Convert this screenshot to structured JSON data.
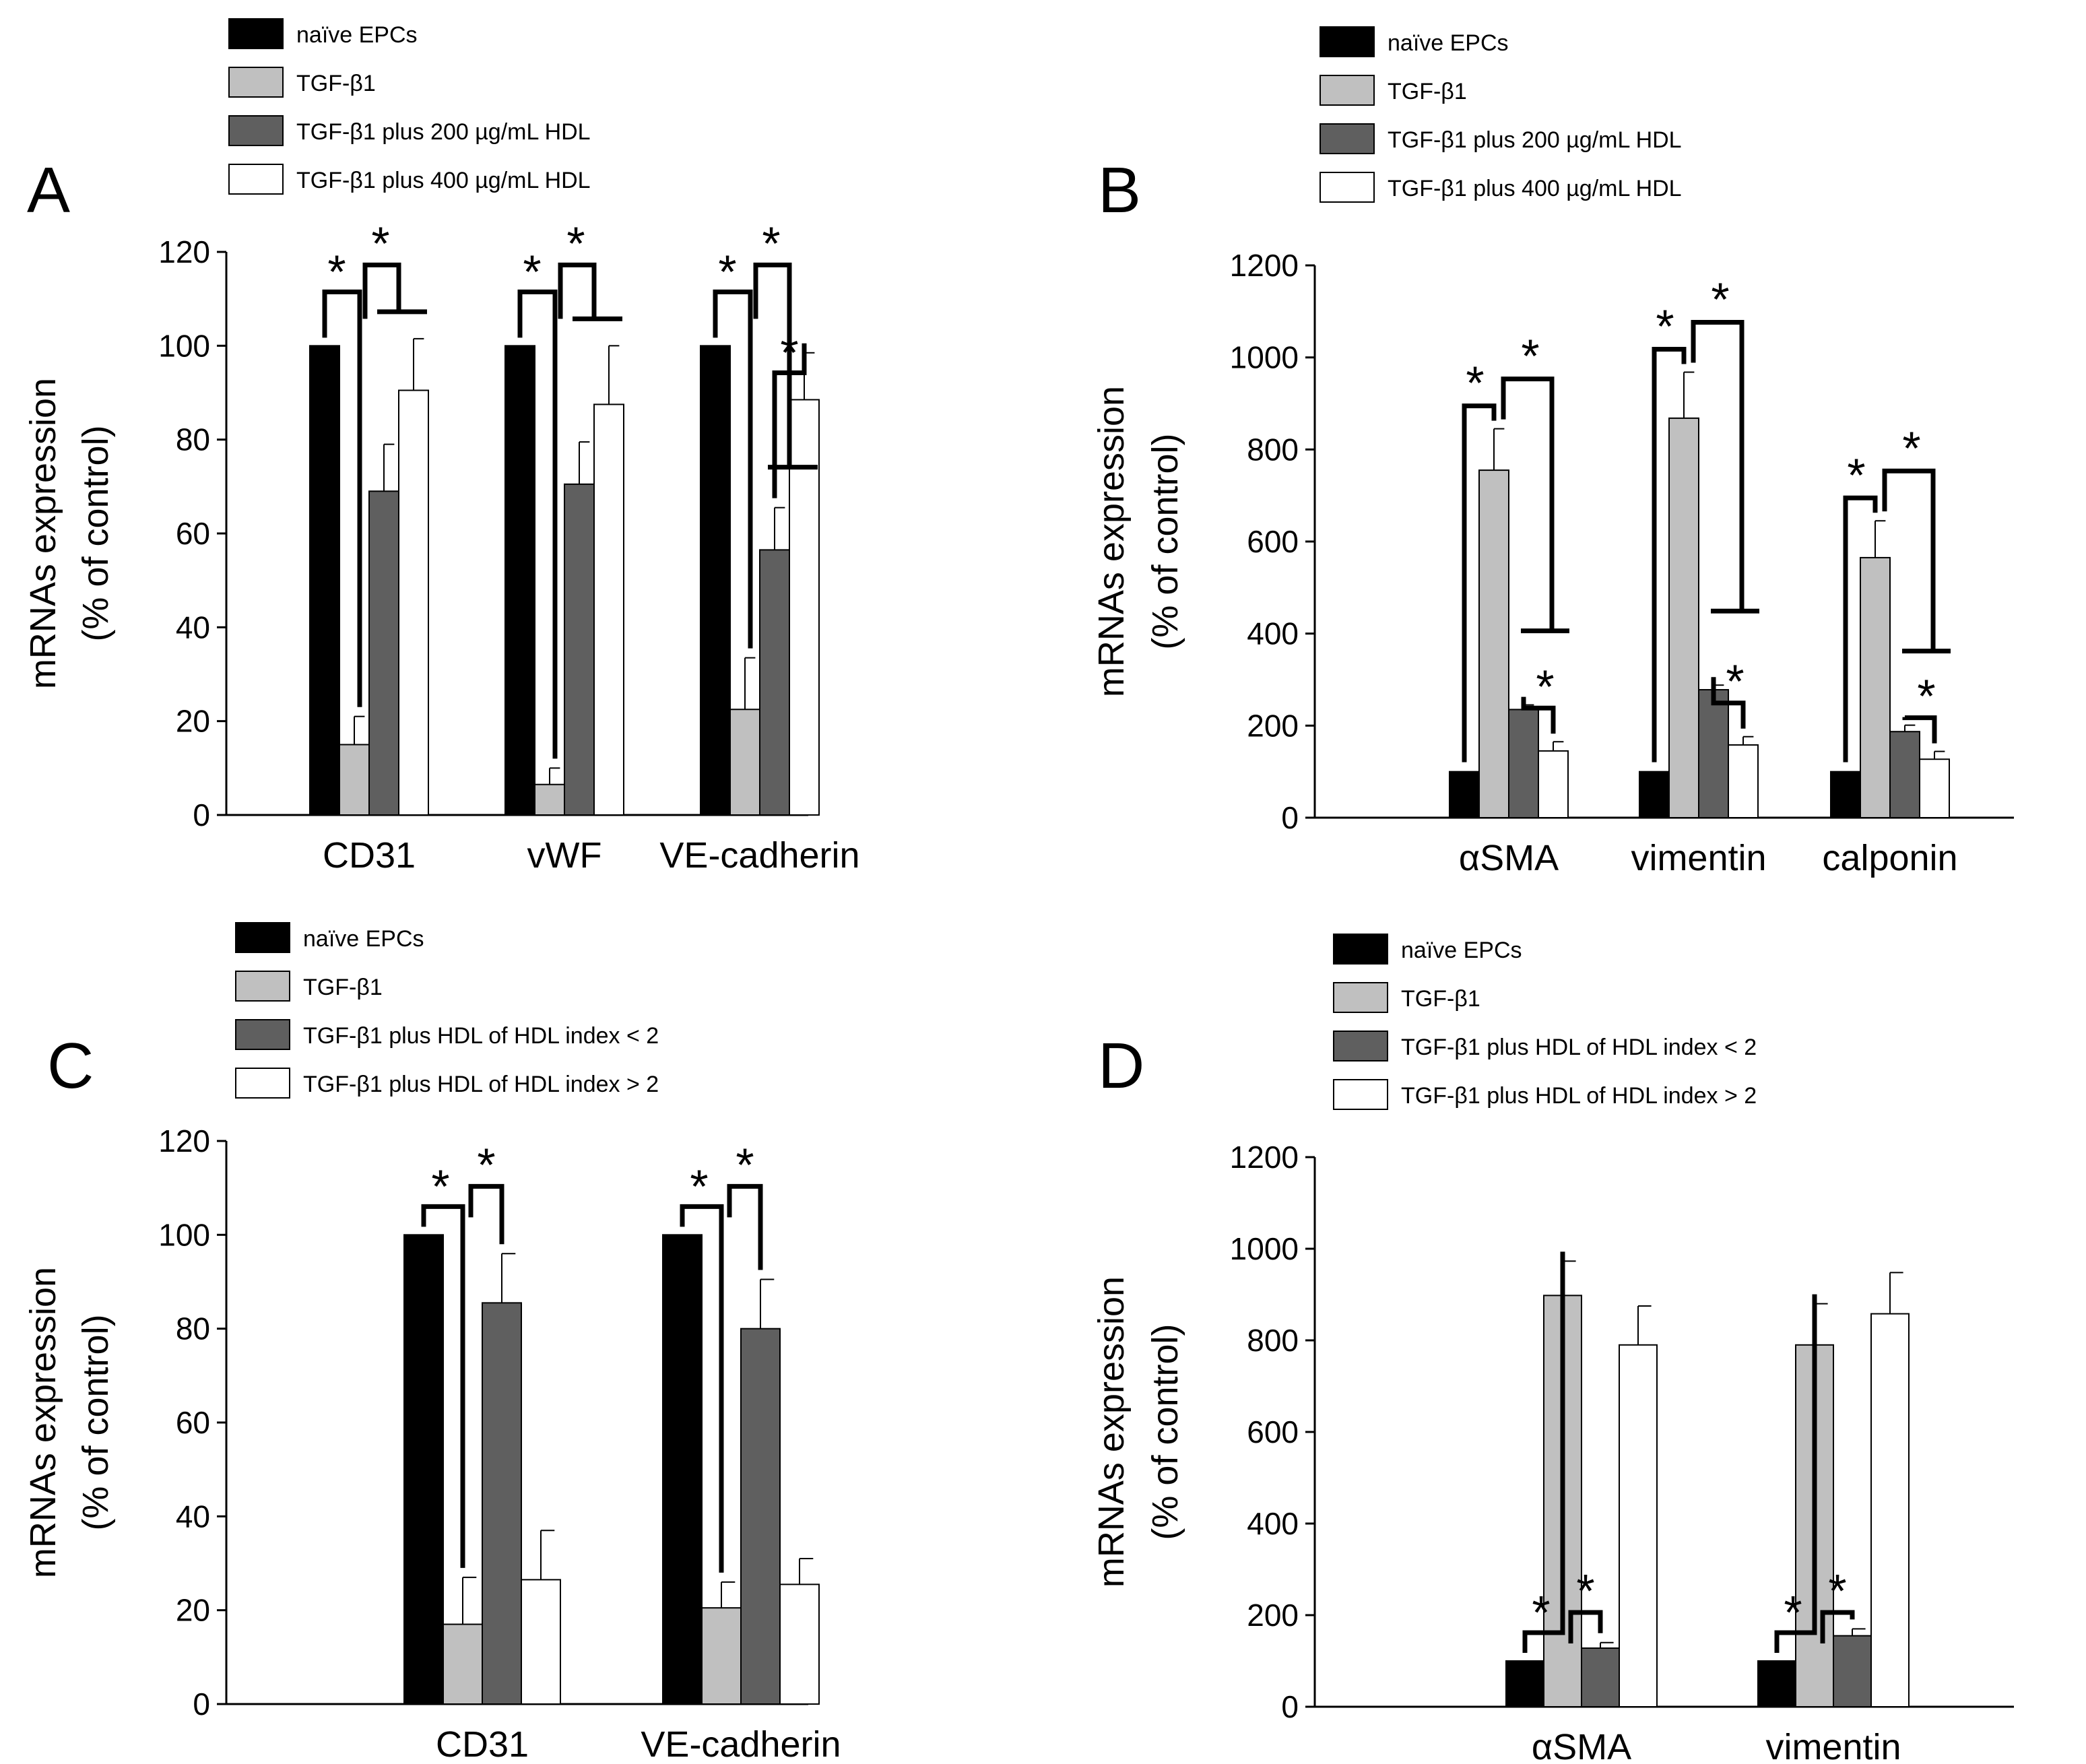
{
  "colors": {
    "naive": "#000000",
    "tgf": "#c0c0c0",
    "hdl_a": "#5f5f5f",
    "hdl_b": "#ffffff",
    "stroke": "#000000"
  },
  "chart_data": [
    {
      "type": "bar",
      "panel_label": "A",
      "ylabel_line1": "mRNAs expression",
      "ylabel_line2": "(% of control)",
      "ylim": [
        0,
        120
      ],
      "yticks": [
        "0",
        "20",
        "40",
        "60",
        "80",
        "100",
        "120"
      ],
      "categories": [
        "CD31",
        "vWF",
        "VE-cadherin"
      ],
      "legend": [
        "naïve EPCs",
        "TGF-β1",
        "TGF-β1 plus 200 µg/mL HDL",
        "TGF-β1 plus 400 µg/mL HDL"
      ],
      "series": [
        {
          "name": "naïve EPCs",
          "values": [
            100,
            100,
            100
          ],
          "errors": [
            0,
            0,
            0
          ]
        },
        {
          "name": "TGF-β1",
          "values": [
            15,
            6.5,
            22.5
          ],
          "errors": [
            6,
            3.5,
            11
          ]
        },
        {
          "name": "TGF-β1 plus 200 µg/mL HDL",
          "values": [
            69,
            70.5,
            56.5
          ],
          "errors": [
            10,
            9,
            9
          ]
        },
        {
          "name": "TGF-β1 plus 400 µg/mL HDL",
          "values": [
            90.5,
            87.5,
            88.5
          ],
          "errors": [
            11,
            12.5,
            10
          ]
        }
      ],
      "significance_marker": "*"
    },
    {
      "type": "bar",
      "panel_label": "B",
      "ylabel_line1": "mRNAs expression",
      "ylabel_line2": "(% of control)",
      "ylim": [
        0,
        1200
      ],
      "yticks": [
        "0",
        "200",
        "400",
        "600",
        "800",
        "1000",
        "1200"
      ],
      "categories": [
        "αSMA",
        "vimentin",
        "calponin"
      ],
      "legend": [
        "naïve EPCs",
        "TGF-β1",
        "TGF-β1 plus 200 µg/mL HDL",
        "TGF-β1 plus 400 µg/mL HDL"
      ],
      "series": [
        {
          "name": "naïve EPCs",
          "values": [
            100,
            100,
            100
          ],
          "errors": [
            0,
            0,
            0
          ]
        },
        {
          "name": "TGF-β1",
          "values": [
            755,
            868,
            565
          ],
          "errors": [
            90,
            100,
            80
          ]
        },
        {
          "name": "TGF-β1 plus 200 µg/mL HDL",
          "values": [
            235,
            278,
            187
          ],
          "errors": [
            10,
            10,
            14
          ]
        },
        {
          "name": "TGF-β1 plus 400 µg/mL HDL",
          "values": [
            145,
            158,
            127
          ],
          "errors": [
            20,
            18,
            17
          ]
        }
      ],
      "significance_marker": "*"
    },
    {
      "type": "bar",
      "panel_label": "C",
      "ylabel_line1": "mRNAs expression",
      "ylabel_line2": "(% of control)",
      "ylim": [
        0,
        120
      ],
      "yticks": [
        "0",
        "20",
        "40",
        "60",
        "80",
        "100",
        "120"
      ],
      "categories": [
        "CD31",
        "VE-cadherin"
      ],
      "legend": [
        "naïve EPCs",
        "TGF-β1",
        "TGF-β1 plus HDL of HDL index < 2",
        "TGF-β1 plus HDL of HDL index > 2"
      ],
      "series": [
        {
          "name": "naïve EPCs",
          "values": [
            100,
            100
          ],
          "errors": [
            0,
            0
          ]
        },
        {
          "name": "TGF-β1",
          "values": [
            17,
            20.5
          ],
          "errors": [
            10,
            5.5
          ]
        },
        {
          "name": "TGF-β1 plus HDL of HDL index < 2",
          "values": [
            85.5,
            80
          ],
          "errors": [
            10.5,
            10.5
          ]
        },
        {
          "name": "TGF-β1 plus HDL of HDL index > 2",
          "values": [
            26.5,
            25.5
          ],
          "errors": [
            10.5,
            5.5
          ]
        }
      ],
      "significance_marker": "*"
    },
    {
      "type": "bar",
      "panel_label": "D",
      "ylabel_line1": "mRNAs expression",
      "ylabel_line2": "(% of control)",
      "ylim": [
        0,
        1200
      ],
      "yticks": [
        "0",
        "200",
        "400",
        "600",
        "800",
        "1000",
        "1200"
      ],
      "categories": [
        "αSMA",
        "vimentin"
      ],
      "legend": [
        "naïve EPCs",
        "TGF-β1",
        "TGF-β1 plus HDL of HDL index < 2",
        "TGF-β1 plus HDL of HDL index > 2"
      ],
      "series": [
        {
          "name": "naïve EPCs",
          "values": [
            100,
            100
          ],
          "errors": [
            0,
            0
          ]
        },
        {
          "name": "TGF-β1",
          "values": [
            898,
            790
          ],
          "errors": [
            75,
            90
          ]
        },
        {
          "name": "TGF-β1 plus HDL of HDL index < 2",
          "values": [
            128,
            155
          ],
          "errors": [
            12,
            15
          ]
        },
        {
          "name": "TGF-β1 plus HDL of HDL index > 2",
          "values": [
            790,
            858
          ],
          "errors": [
            85,
            90
          ]
        }
      ],
      "significance_marker": "*"
    }
  ]
}
